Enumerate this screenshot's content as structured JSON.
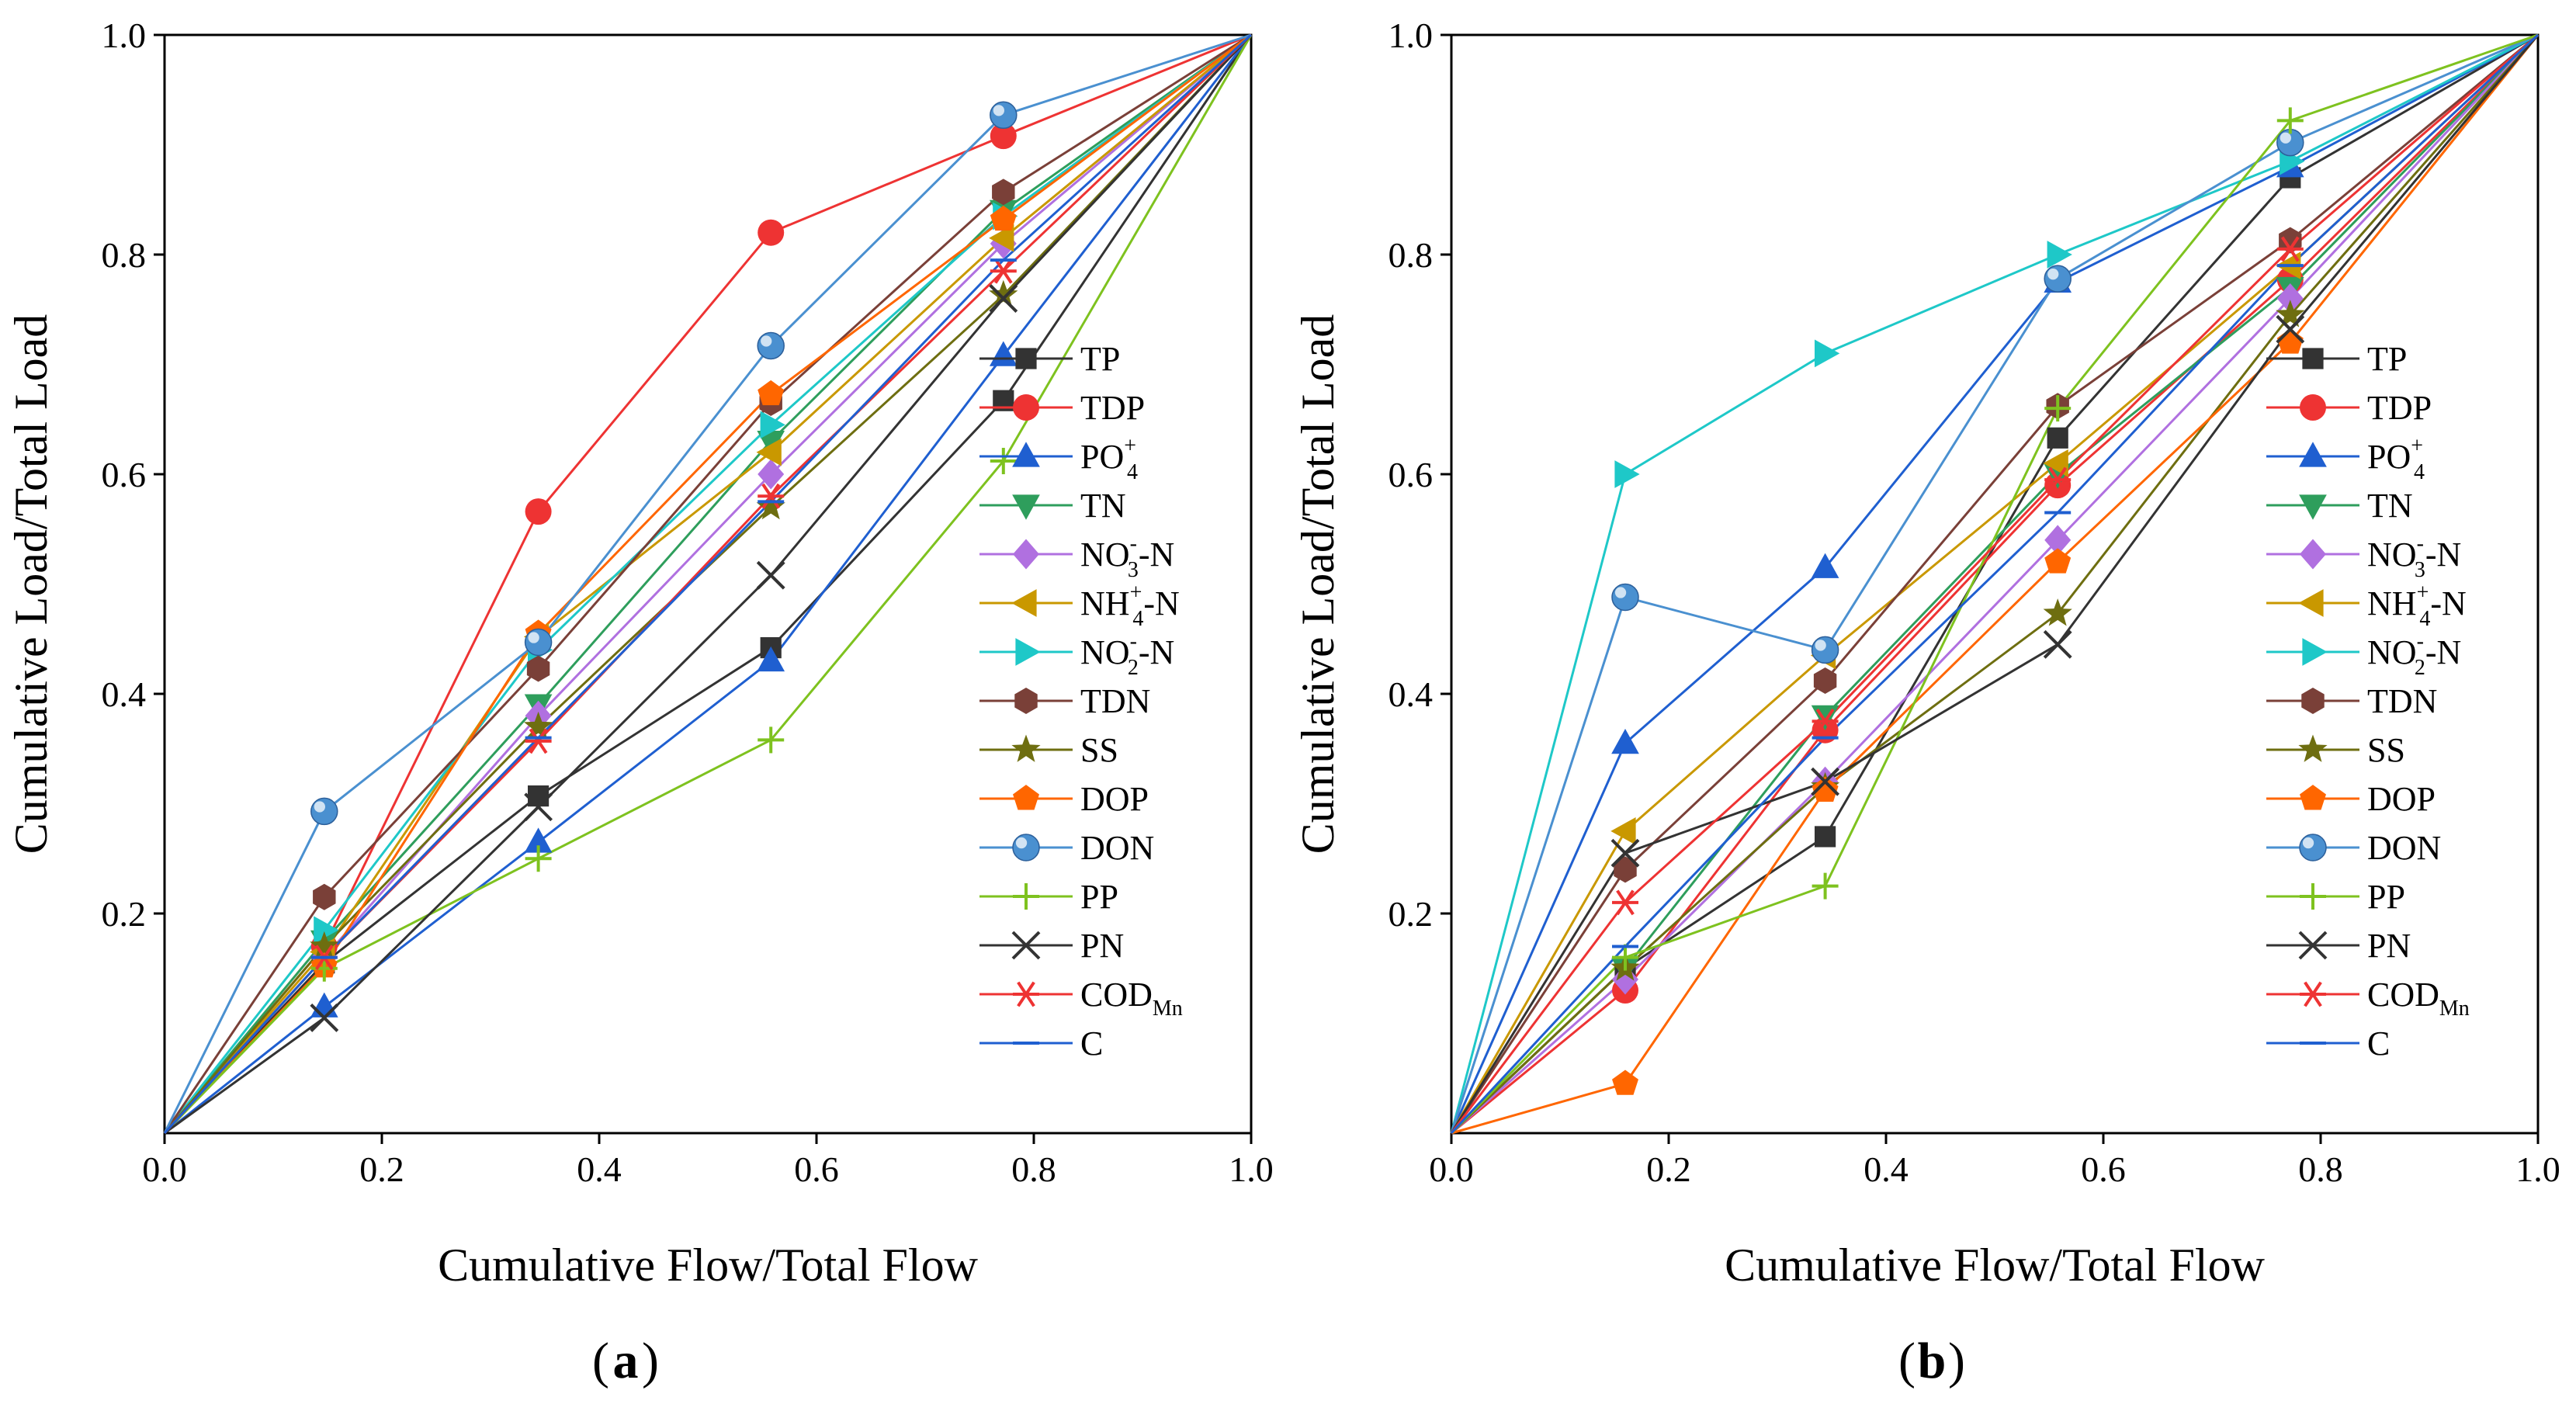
{
  "figure": {
    "caption_a": "a",
    "caption_b": "b",
    "paren_open": "(",
    "paren_close": ")"
  },
  "chart_data": [
    {
      "panel": "a",
      "type": "line",
      "xlabel": "Cumulative Flow/Total Flow",
      "ylabel": "Cumulative Load/Total Load",
      "xlim": [
        0,
        1
      ],
      "ylim": [
        0,
        1
      ],
      "xticks": [
        "0.0",
        "0.2",
        "0.4",
        "0.6",
        "0.8",
        "1.0"
      ],
      "yticks": [
        "0.2",
        "0.4",
        "0.6",
        "0.8",
        "1.0"
      ],
      "legend_position": "lower-right",
      "x": [
        0,
        0.147,
        0.344,
        0.558,
        0.772,
        1.0
      ],
      "series": [
        {
          "name": "TP",
          "main": "TP",
          "sub": "",
          "sup": "",
          "suffix": "",
          "color": "#333333",
          "marker": "square",
          "values": [
            0,
            0.155,
            0.307,
            0.442,
            0.667,
            1.0
          ]
        },
        {
          "name": "TDP",
          "main": "TDP",
          "sub": "",
          "sup": "",
          "suffix": "",
          "color": "#ee3333",
          "marker": "circle",
          "values": [
            0,
            0.17,
            0.566,
            0.82,
            0.908,
            1.0
          ]
        },
        {
          "name": "PO4+",
          "main": "PO",
          "sub": "4",
          "sup": "+",
          "suffix": "",
          "color": "#1f5fd0",
          "marker": "triangle-up",
          "values": [
            0,
            0.115,
            0.265,
            0.43,
            0.708,
            1.0
          ]
        },
        {
          "name": "TN",
          "main": "TN",
          "sub": "",
          "sup": "",
          "suffix": "",
          "color": "#2e9e5c",
          "marker": "triangle-down",
          "values": [
            0,
            0.175,
            0.39,
            0.63,
            0.84,
            1.0
          ]
        },
        {
          "name": "NO3--N",
          "main": "NO",
          "sub": "3",
          "sup": "-",
          "suffix": "-N",
          "color": "#b070e0",
          "marker": "diamond",
          "values": [
            0,
            0.16,
            0.38,
            0.6,
            0.81,
            1.0
          ]
        },
        {
          "name": "NH4+-N",
          "main": "NH",
          "sub": "4",
          "sup": "+",
          "suffix": "-N",
          "color": "#c99800",
          "marker": "triangle-left",
          "values": [
            0,
            0.165,
            0.452,
            0.62,
            0.815,
            1.0
          ]
        },
        {
          "name": "NO2--N",
          "main": "NO",
          "sub": "2",
          "sup": "-",
          "suffix": "-N",
          "color": "#1ec8c8",
          "marker": "triangle-right",
          "values": [
            0,
            0.185,
            0.44,
            0.645,
            0.835,
            1.0
          ]
        },
        {
          "name": "TDN",
          "main": "TDN",
          "sub": "",
          "sup": "",
          "suffix": "",
          "color": "#7a4038",
          "marker": "hexagon",
          "values": [
            0,
            0.215,
            0.423,
            0.665,
            0.857,
            1.0
          ]
        },
        {
          "name": "SS",
          "main": "SS",
          "sub": "",
          "sup": "",
          "suffix": "",
          "color": "#6e6e10",
          "marker": "star",
          "values": [
            0,
            0.17,
            0.37,
            0.57,
            0.763,
            1.0
          ]
        },
        {
          "name": "DOP",
          "main": "DOP",
          "sub": "",
          "sup": "",
          "suffix": "",
          "color": "#ff6600",
          "marker": "pentagon",
          "values": [
            0,
            0.152,
            0.455,
            0.673,
            0.832,
            1.0
          ]
        },
        {
          "name": "DON",
          "main": "DON",
          "sub": "",
          "sup": "",
          "suffix": "",
          "color": "#4a90d0",
          "marker": "sphere",
          "values": [
            0,
            0.293,
            0.447,
            0.717,
            0.927,
            1.0
          ]
        },
        {
          "name": "PP",
          "main": "PP",
          "sub": "",
          "sup": "",
          "suffix": "",
          "color": "#7ec21f",
          "marker": "plus",
          "values": [
            0,
            0.15,
            0.25,
            0.358,
            0.612,
            1.0
          ]
        },
        {
          "name": "PN",
          "main": "PN",
          "sub": "",
          "sup": "",
          "suffix": "",
          "color": "#333333",
          "marker": "cross",
          "values": [
            0,
            0.105,
            0.297,
            0.508,
            0.76,
            1.0
          ]
        },
        {
          "name": "CODMn",
          "main": "COD",
          "sub": "Mn",
          "sup": "",
          "suffix": "",
          "color": "#ee3333",
          "marker": "asterisk",
          "values": [
            0,
            0.16,
            0.357,
            0.58,
            0.785,
            1.0
          ]
        },
        {
          "name": "C",
          "main": "C",
          "sub": "",
          "sup": "",
          "suffix": "",
          "color": "#1f5fd0",
          "marker": "dash",
          "values": [
            0,
            0.16,
            0.36,
            0.575,
            0.795,
            1.0
          ]
        }
      ]
    },
    {
      "panel": "b",
      "type": "line",
      "xlabel": "Cumulative Flow/Total Flow",
      "ylabel": "Cumulative Load/Total Load",
      "xlim": [
        0,
        1
      ],
      "ylim": [
        0,
        1
      ],
      "xticks": [
        "0.0",
        "0.2",
        "0.4",
        "0.6",
        "0.8",
        "1.0"
      ],
      "yticks": [
        "0.2",
        "0.4",
        "0.6",
        "0.8",
        "1.0"
      ],
      "legend_position": "lower-right",
      "x": [
        0,
        0.16,
        0.344,
        0.558,
        0.772,
        1.0
      ],
      "series": [
        {
          "name": "TP",
          "main": "TP",
          "sub": "",
          "sup": "",
          "suffix": "",
          "color": "#333333",
          "marker": "square",
          "values": [
            0,
            0.15,
            0.27,
            0.633,
            0.87,
            1.0
          ]
        },
        {
          "name": "TDP",
          "main": "TDP",
          "sub": "",
          "sup": "",
          "suffix": "",
          "color": "#ee3333",
          "marker": "circle",
          "values": [
            0,
            0.13,
            0.367,
            0.59,
            0.777,
            1.0
          ]
        },
        {
          "name": "PO4+",
          "main": "PO",
          "sub": "4",
          "sup": "+",
          "suffix": "",
          "color": "#1f5fd0",
          "marker": "triangle-up",
          "values": [
            0,
            0.355,
            0.515,
            0.775,
            0.88,
            1.0
          ]
        },
        {
          "name": "TN",
          "main": "TN",
          "sub": "",
          "sup": "",
          "suffix": "",
          "color": "#2e9e5c",
          "marker": "triangle-down",
          "values": [
            0,
            0.15,
            0.38,
            0.6,
            0.77,
            1.0
          ]
        },
        {
          "name": "NO3--N",
          "main": "NO",
          "sub": "3",
          "sup": "-",
          "suffix": "-N",
          "color": "#b070e0",
          "marker": "diamond",
          "values": [
            0,
            0.14,
            0.32,
            0.54,
            0.76,
            1.0
          ]
        },
        {
          "name": "NH4+-N",
          "main": "NH",
          "sub": "4",
          "sup": "+",
          "suffix": "-N",
          "color": "#c99800",
          "marker": "triangle-left",
          "values": [
            0,
            0.275,
            0.435,
            0.61,
            0.79,
            1.0
          ]
        },
        {
          "name": "NO2--N",
          "main": "NO",
          "sub": "2",
          "sup": "-",
          "suffix": "-N",
          "color": "#1ec8c8",
          "marker": "triangle-right",
          "values": [
            0,
            0.6,
            0.71,
            0.8,
            0.885,
            1.0
          ]
        },
        {
          "name": "TDN",
          "main": "TDN",
          "sub": "",
          "sup": "",
          "suffix": "",
          "color": "#7a4038",
          "marker": "hexagon",
          "values": [
            0,
            0.24,
            0.412,
            0.662,
            0.813,
            1.0
          ]
        },
        {
          "name": "SS",
          "main": "SS",
          "sub": "",
          "sup": "",
          "suffix": "",
          "color": "#6e6e10",
          "marker": "star",
          "values": [
            0,
            0.15,
            0.315,
            0.473,
            0.745,
            1.0
          ]
        },
        {
          "name": "DOP",
          "main": "DOP",
          "sub": "",
          "sup": "",
          "suffix": "",
          "color": "#ff6600",
          "marker": "pentagon",
          "values": [
            0,
            0.045,
            0.312,
            0.52,
            0.72,
            1.0
          ]
        },
        {
          "name": "DON",
          "main": "DON",
          "sub": "",
          "sup": "",
          "suffix": "",
          "color": "#4a90d0",
          "marker": "sphere",
          "values": [
            0,
            0.488,
            0.44,
            0.778,
            0.902,
            1.0
          ]
        },
        {
          "name": "PP",
          "main": "PP",
          "sub": "",
          "sup": "",
          "suffix": "",
          "color": "#7ec21f",
          "marker": "plus",
          "values": [
            0,
            0.16,
            0.225,
            0.66,
            0.922,
            1.0
          ]
        },
        {
          "name": "PN",
          "main": "PN",
          "sub": "",
          "sup": "",
          "suffix": "",
          "color": "#333333",
          "marker": "cross",
          "values": [
            0,
            0.255,
            0.32,
            0.445,
            0.732,
            1.0
          ]
        },
        {
          "name": "CODMn",
          "main": "COD",
          "sub": "Mn",
          "sup": "",
          "suffix": "",
          "color": "#ee3333",
          "marker": "asterisk",
          "values": [
            0,
            0.21,
            0.375,
            0.595,
            0.805,
            1.0
          ]
        },
        {
          "name": "C",
          "main": "C",
          "sub": "",
          "sup": "",
          "suffix": "",
          "color": "#1f5fd0",
          "marker": "dash",
          "values": [
            0,
            0.17,
            0.36,
            0.565,
            0.79,
            1.0
          ]
        }
      ]
    }
  ]
}
